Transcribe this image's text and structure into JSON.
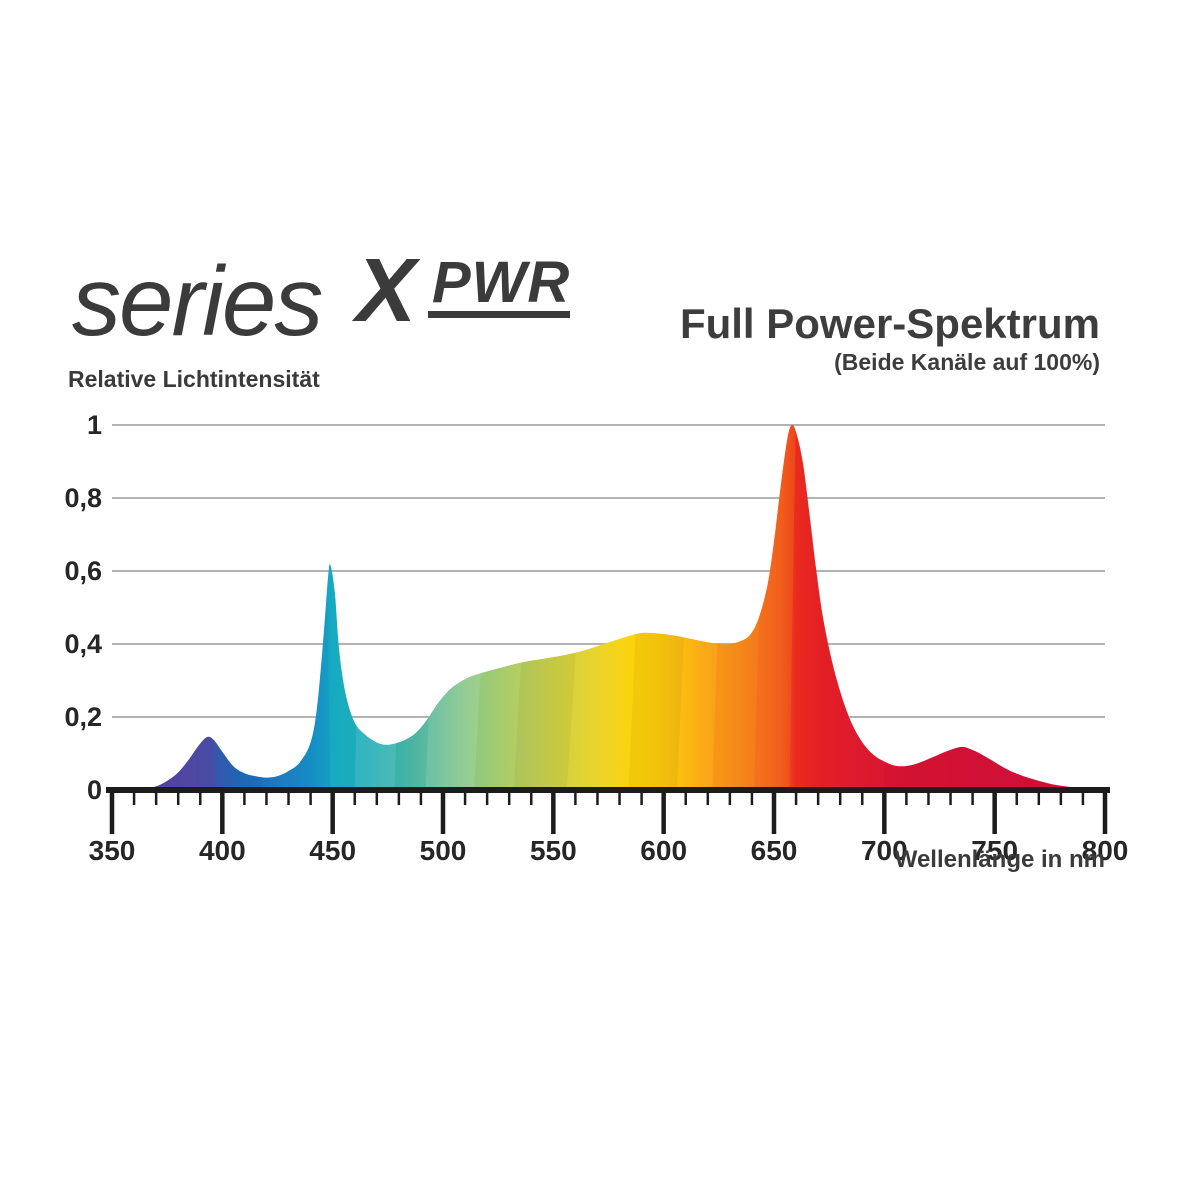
{
  "logo": {
    "series": "series",
    "x": "X",
    "pwr": "PWR"
  },
  "title_block": {
    "title": "Full Power-Spektrum",
    "subtitle": "(Beide Kanäle auf 100%)"
  },
  "colors": {
    "text": "#3b3b3b",
    "grid": "#b3b3b3",
    "axis": "#1c1c1c"
  },
  "chart_data": {
    "type": "area",
    "title": "Full Power-Spektrum",
    "subtitle": "(Beide Kanäle auf 100%)",
    "ylabel": "Relative Lichtintensität",
    "xlabel": "Wellenlänge in nm",
    "xlim": [
      350,
      800
    ],
    "ylim": [
      0,
      1
    ],
    "grid": "horizontal",
    "x_minor_step": 10,
    "x_ticks": [
      {
        "label": "350",
        "v": 350
      },
      {
        "label": "400",
        "v": 400
      },
      {
        "label": "450",
        "v": 450
      },
      {
        "label": "500",
        "v": 500
      },
      {
        "label": "550",
        "v": 550
      },
      {
        "label": "600",
        "v": 600
      },
      {
        "label": "650",
        "v": 650
      },
      {
        "label": "700",
        "v": 700
      },
      {
        "label": "750",
        "v": 750
      },
      {
        "label": "800",
        "v": 800
      }
    ],
    "y_ticks": [
      {
        "label": "0",
        "v": 0
      },
      {
        "label": "0,2",
        "v": 0.2
      },
      {
        "label": "0,4",
        "v": 0.4
      },
      {
        "label": "0,6",
        "v": 0.6
      },
      {
        "label": "0,8",
        "v": 0.8
      },
      {
        "label": "1",
        "v": 1
      }
    ],
    "x": [
      350,
      358,
      364,
      370,
      375,
      380,
      385,
      389,
      393,
      396,
      400,
      405,
      410,
      415,
      420,
      425,
      430,
      435,
      440,
      443,
      446,
      448,
      449,
      451,
      453,
      456,
      460,
      465,
      470,
      474,
      478,
      483,
      488,
      493,
      498,
      503,
      508,
      513,
      520,
      528,
      536,
      544,
      552,
      560,
      568,
      576,
      583,
      590,
      597,
      604,
      611,
      618,
      624,
      629,
      634,
      639,
      643,
      647,
      650,
      653,
      656,
      658,
      660,
      663,
      666,
      669,
      672,
      676,
      680,
      684,
      688,
      692,
      696,
      700,
      704,
      708,
      712,
      716,
      720,
      725,
      730,
      735,
      739,
      744,
      749,
      754,
      759,
      764,
      770,
      776,
      782,
      788,
      794,
      800
    ],
    "y": [
      0,
      0.001,
      0.003,
      0.01,
      0.025,
      0.048,
      0.085,
      0.12,
      0.145,
      0.138,
      0.105,
      0.065,
      0.046,
      0.038,
      0.034,
      0.038,
      0.052,
      0.075,
      0.13,
      0.23,
      0.43,
      0.59,
      0.615,
      0.54,
      0.38,
      0.26,
      0.185,
      0.15,
      0.13,
      0.124,
      0.127,
      0.138,
      0.158,
      0.195,
      0.24,
      0.275,
      0.297,
      0.312,
      0.325,
      0.338,
      0.35,
      0.358,
      0.366,
      0.376,
      0.39,
      0.406,
      0.42,
      0.43,
      0.429,
      0.424,
      0.416,
      0.407,
      0.401,
      0.399,
      0.406,
      0.424,
      0.47,
      0.56,
      0.68,
      0.83,
      0.96,
      1.0,
      0.98,
      0.9,
      0.76,
      0.61,
      0.48,
      0.36,
      0.27,
      0.2,
      0.15,
      0.115,
      0.092,
      0.078,
      0.068,
      0.065,
      0.068,
      0.075,
      0.085,
      0.098,
      0.11,
      0.118,
      0.112,
      0.098,
      0.08,
      0.062,
      0.047,
      0.036,
      0.025,
      0.016,
      0.01,
      0.006,
      0.003,
      0.001
    ],
    "gradient": [
      {
        "nm": 355,
        "color": "#453f94"
      },
      {
        "nm": 385,
        "color": "#4c4da3"
      },
      {
        "nm": 395,
        "color": "#4055a9"
      },
      {
        "nm": 408,
        "color": "#2268b4"
      },
      {
        "nm": 425,
        "color": "#1d79bd"
      },
      {
        "nm": 440,
        "color": "#1692c4"
      },
      {
        "nm": 450,
        "color": "#16abc1"
      },
      {
        "nm": 465,
        "color": "#1fadb9"
      },
      {
        "nm": 485,
        "color": "#47b4a4"
      },
      {
        "nm": 500,
        "color": "#6fbf96"
      },
      {
        "nm": 512,
        "color": "#8cc884"
      },
      {
        "nm": 527,
        "color": "#a7cc6c"
      },
      {
        "nm": 542,
        "color": "#c2d054"
      },
      {
        "nm": 557,
        "color": "#d8d23e"
      },
      {
        "nm": 572,
        "color": "#ecd428"
      },
      {
        "nm": 587,
        "color": "#fdd30a"
      },
      {
        "nm": 602,
        "color": "#fcc60f"
      },
      {
        "nm": 617,
        "color": "#faad15"
      },
      {
        "nm": 632,
        "color": "#f7941c"
      },
      {
        "nm": 644,
        "color": "#f4791f"
      },
      {
        "nm": 653,
        "color": "#f15b21"
      },
      {
        "nm": 660,
        "color": "#e92b1f"
      },
      {
        "nm": 672,
        "color": "#e31f26"
      },
      {
        "nm": 688,
        "color": "#dd1a2d"
      },
      {
        "nm": 710,
        "color": "#d81434"
      },
      {
        "nm": 745,
        "color": "#d51237"
      },
      {
        "nm": 800,
        "color": "#d31039"
      }
    ]
  }
}
